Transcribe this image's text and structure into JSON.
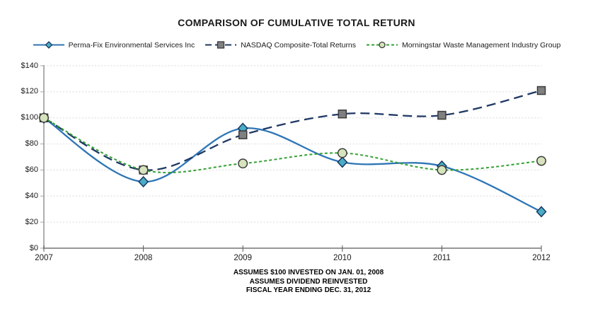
{
  "chart_data": {
    "type": "line",
    "title": "COMPARISON OF CUMULATIVE TOTAL RETURN",
    "x": [
      2007,
      2008,
      2009,
      2010,
      2011,
      2012
    ],
    "x_tick_labels": [
      "2007",
      "2008",
      "2009",
      "2010",
      "2011",
      "2012"
    ],
    "y_ticks": [
      0,
      20,
      40,
      60,
      80,
      100,
      120,
      140
    ],
    "y_tick_labels": [
      "$0",
      "$20",
      "$40",
      "$60",
      "$80",
      "$100",
      "$120",
      "$140"
    ],
    "ylim": [
      0,
      140
    ],
    "grid": "horizontal-dotted",
    "legend_position": "top",
    "smoothed": true,
    "series": [
      {
        "name": "Perma-Fix Environmental Services Inc",
        "values": [
          100,
          51,
          92,
          66,
          63,
          28
        ],
        "line_color": "#2e75b6",
        "line_style": "solid",
        "marker": "diamond",
        "marker_fill": "#4bacc6",
        "marker_stroke": "#17375e"
      },
      {
        "name": "NASDAQ Composite-Total Returns",
        "values": [
          100,
          60,
          87,
          103,
          102,
          121
        ],
        "line_color": "#1f3864",
        "line_style": "long-dash",
        "marker": "square",
        "marker_fill": "#808080",
        "marker_stroke": "#3b3b3b"
      },
      {
        "name": "Morningstar Waste Management Industry Group",
        "values": [
          100,
          60,
          65,
          73,
          60,
          67
        ],
        "line_color": "#33a033",
        "line_style": "dash",
        "marker": "circle",
        "marker_fill": "#d6e3bc",
        "marker_stroke": "#3b3b3b"
      }
    ],
    "footnotes": [
      "ASSUMES $100 INVESTED ON JAN. 01, 2008",
      "ASSUMES DIVIDEND REINVESTED",
      "FISCAL YEAR ENDING DEC. 31, 2012"
    ],
    "colors": {
      "gridline": "#d9d9d9",
      "y_axis": "#a6a6a6",
      "x_axis": "#595959"
    }
  }
}
